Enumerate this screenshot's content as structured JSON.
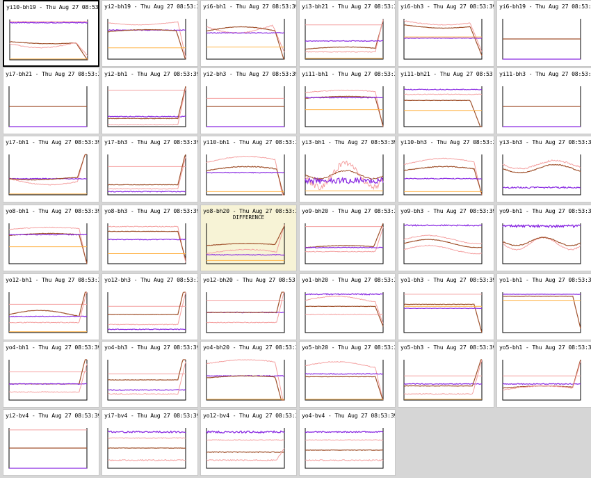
{
  "timestamp": "Thu Aug 27 08:53:39",
  "colors": {
    "background": "#d6d6d6",
    "cell": "#ffffff",
    "highlight": "#f7f3d6",
    "purple": "#8a2be2",
    "brown": "#a0522d",
    "pink": "#f4a0a0",
    "orange": "#ffb347"
  },
  "cells": [
    {
      "name": "yi10-bh19",
      "selected": true,
      "pattern": "r0"
    },
    {
      "name": "yi2-bh19",
      "pattern": "r1"
    },
    {
      "name": "yi6-bh1",
      "pattern": "r2"
    },
    {
      "name": "yi3-bh21",
      "pattern": "r3"
    },
    {
      "name": "yi6-bh3",
      "pattern": "r4"
    },
    {
      "name": "yi6-bh19",
      "pattern": "flat"
    },
    {
      "name": "yi7-bh21",
      "pattern": "flat"
    },
    {
      "name": "yi2-bh1",
      "pattern": "rise"
    },
    {
      "name": "yi2-bh3",
      "pattern": "flat2"
    },
    {
      "name": "yi11-bh1",
      "pattern": "drop"
    },
    {
      "name": "yi11-bh21",
      "pattern": "drop2"
    },
    {
      "name": "yi11-bh3",
      "pattern": "flat"
    },
    {
      "name": "yi7-bh1",
      "pattern": "rise2"
    },
    {
      "name": "yi7-bh3",
      "pattern": "rise3"
    },
    {
      "name": "yi10-bh1",
      "pattern": "hump"
    },
    {
      "name": "yi3-bh1",
      "pattern": "noisy"
    },
    {
      "name": "yi10-bh3",
      "pattern": "hump2"
    },
    {
      "name": "yi3-bh3",
      "pattern": "wave"
    },
    {
      "name": "yo8-bh1",
      "pattern": "drop"
    },
    {
      "name": "yo8-bh3",
      "pattern": "drop3"
    },
    {
      "name": "yo8-bh20",
      "highlight": true,
      "subtitle": "DIFFERENCE",
      "pattern": "rise4"
    },
    {
      "name": "yo9-bh20",
      "pattern": "rise5"
    },
    {
      "name": "yo9-bh3",
      "pattern": "topline"
    },
    {
      "name": "yo9-bh1",
      "pattern": "topwave"
    },
    {
      "name": "yo12-bh1",
      "pattern": "rise6"
    },
    {
      "name": "yo12-bh3",
      "pattern": "rise7"
    },
    {
      "name": "yo12-bh20",
      "pattern": "rise8"
    },
    {
      "name": "yo1-bh20",
      "pattern": "drop4"
    },
    {
      "name": "yo1-bh3",
      "pattern": "drop5"
    },
    {
      "name": "yo1-bh1",
      "pattern": "drop6"
    },
    {
      "name": "yo4-bh1",
      "pattern": "rise9"
    },
    {
      "name": "yo4-bh3",
      "pattern": "rise10"
    },
    {
      "name": "yo4-bh20",
      "pattern": "drop7"
    },
    {
      "name": "yo5-bh20",
      "pattern": "drop8"
    },
    {
      "name": "yo5-bh3",
      "pattern": "rise11"
    },
    {
      "name": "yo5-bh1",
      "pattern": "rise12"
    },
    {
      "name": "yi2-bv4",
      "pattern": "bv1"
    },
    {
      "name": "yi7-bv4",
      "pattern": "bv2"
    },
    {
      "name": "yo12-bv4",
      "pattern": "bv3"
    },
    {
      "name": "yo4-bv4",
      "pattern": "bv4"
    }
  ]
}
